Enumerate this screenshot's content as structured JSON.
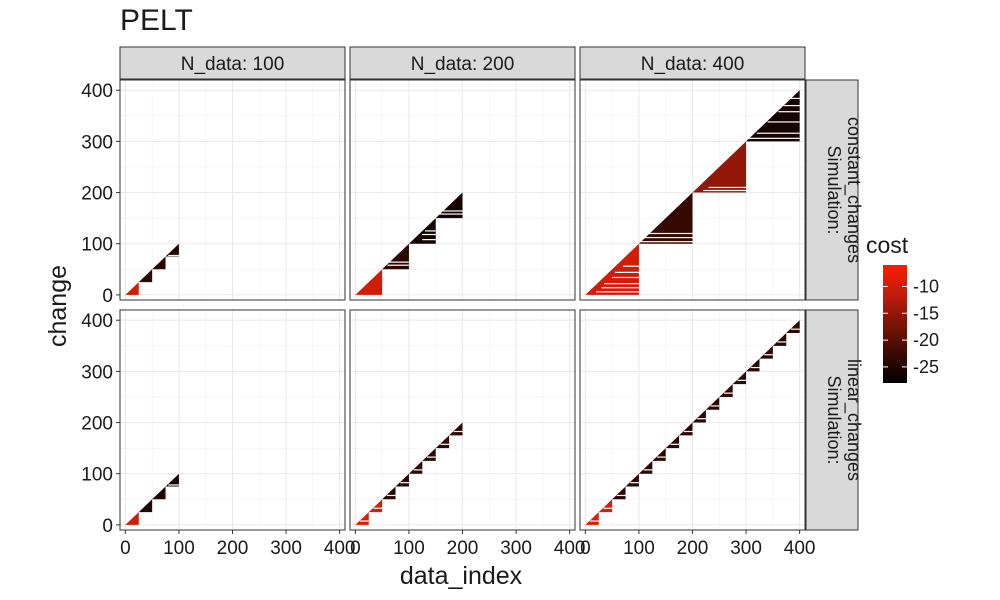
{
  "chart_data": {
    "type": "heatmap",
    "title": "PELT",
    "xlabel": "data_index",
    "ylabel": "change",
    "xlim": [
      -10,
      410
    ],
    "ylim": [
      -10,
      420
    ],
    "x_ticks": [
      0,
      100,
      200,
      300,
      400
    ],
    "y_ticks": [
      0,
      100,
      200,
      300,
      400
    ],
    "grid": true,
    "facet_cols": [
      "N_data: 100",
      "N_data: 200",
      "N_data: 400"
    ],
    "facet_rows": [
      [
        "Simulation:",
        "constant_changes"
      ],
      [
        "Simulation:",
        "linear_changes"
      ]
    ],
    "legend": {
      "title": "cost",
      "position": "right",
      "min": -28,
      "max": -6,
      "ticks": [
        -10,
        -15,
        -20,
        -25
      ],
      "colors": [
        "#000000",
        "#3a0a02",
        "#7a1406",
        "#c01d0a",
        "#ff1a00"
      ]
    },
    "panels": [
      {
        "row": 0,
        "col": 0,
        "blocks": [
          {
            "x": [
              0,
              25
            ],
            "y_top": 25,
            "cost": -10
          },
          {
            "x": [
              25,
              50
            ],
            "y_top": 50,
            "cost": -24
          },
          {
            "x": [
              50,
              75
            ],
            "y_top": 75,
            "cost": -24
          },
          {
            "x": [
              75,
              100
            ],
            "y_top": 100,
            "cost": -25
          }
        ],
        "stripes": [
          {
            "x": [
              80,
              100
            ],
            "y": 77
          }
        ]
      },
      {
        "row": 0,
        "col": 1,
        "blocks": [
          {
            "x": [
              0,
              50
            ],
            "y_top": 50,
            "cost": -10
          },
          {
            "x": [
              50,
              100
            ],
            "y_top": 100,
            "cost": -24
          },
          {
            "x": [
              100,
              150
            ],
            "y_top": 150,
            "cost": -26
          },
          {
            "x": [
              150,
              200
            ],
            "y_top": 200,
            "cost": -26
          }
        ],
        "stripes": [
          {
            "x": [
              60,
              100
            ],
            "y": 58
          },
          {
            "x": [
              60,
              100
            ],
            "y": 64
          },
          {
            "x": [
              125,
              150
            ],
            "y": 108
          },
          {
            "x": [
              125,
              150
            ],
            "y": 118
          },
          {
            "x": [
              130,
              150
            ],
            "y": 125
          },
          {
            "x": [
              155,
              200
            ],
            "y": 158
          },
          {
            "x": [
              160,
              200
            ],
            "y": 164
          }
        ]
      },
      {
        "row": 0,
        "col": 2,
        "blocks": [
          {
            "x": [
              0,
              100
            ],
            "y_top": 100,
            "cost": -10
          },
          {
            "x": [
              100,
              200
            ],
            "y_top": 200,
            "cost": -23
          },
          {
            "x": [
              200,
              300
            ],
            "y_top": 300,
            "cost": -15
          },
          {
            "x": [
              300,
              400
            ],
            "y_top": 400,
            "cost": -26
          }
        ],
        "stripes": [
          {
            "x": [
              20,
              100
            ],
            "y": 6
          },
          {
            "x": [
              30,
              100
            ],
            "y": 14
          },
          {
            "x": [
              35,
              100
            ],
            "y": 22
          },
          {
            "x": [
              50,
              100
            ],
            "y": 34
          },
          {
            "x": [
              55,
              100
            ],
            "y": 44
          },
          {
            "x": [
              70,
              100
            ],
            "y": 56
          },
          {
            "x": [
              100,
              200
            ],
            "y": 104
          },
          {
            "x": [
              105,
              200
            ],
            "y": 112
          },
          {
            "x": [
              110,
              200
            ],
            "y": 120
          },
          {
            "x": [
              220,
              300
            ],
            "y": 204
          },
          {
            "x": [
              230,
              300
            ],
            "y": 210
          },
          {
            "x": [
              300,
              400
            ],
            "y": 306
          },
          {
            "x": [
              320,
              400
            ],
            "y": 316
          },
          {
            "x": [
              340,
              400
            ],
            "y": 338
          },
          {
            "x": [
              360,
              400
            ],
            "y": 358
          },
          {
            "x": [
              370,
              400
            ],
            "y": 370
          },
          {
            "x": [
              380,
              400
            ],
            "y": 384
          }
        ]
      },
      {
        "row": 1,
        "col": 0,
        "blocks": [
          {
            "x": [
              0,
              25
            ],
            "y_top": 25,
            "cost": -10
          },
          {
            "x": [
              25,
              50
            ],
            "y_top": 50,
            "cost": -25
          },
          {
            "x": [
              50,
              75
            ],
            "y_top": 75,
            "cost": -25
          },
          {
            "x": [
              75,
              100
            ],
            "y_top": 100,
            "cost": -26
          }
        ],
        "stripes": [
          {
            "x": [
              80,
              100
            ],
            "y": 78
          }
        ]
      },
      {
        "row": 1,
        "col": 1,
        "steps": 200,
        "segment": 25,
        "red_until": 50
      },
      {
        "row": 1,
        "col": 2,
        "steps": 400,
        "segment": 25,
        "red_until": 50
      }
    ]
  }
}
